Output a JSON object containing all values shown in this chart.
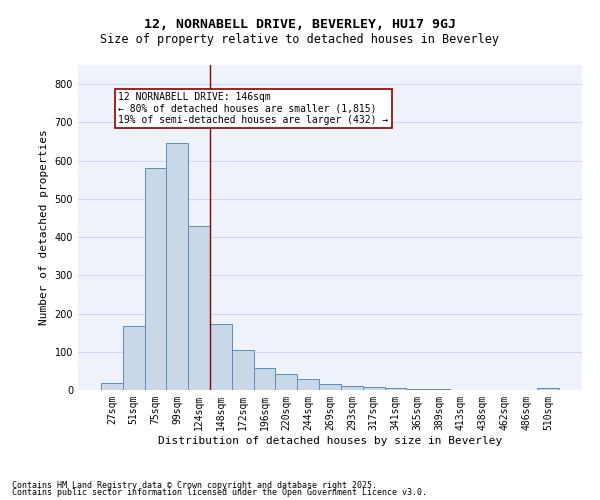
{
  "title1": "12, NORNABELL DRIVE, BEVERLEY, HU17 9GJ",
  "title2": "Size of property relative to detached houses in Beverley",
  "xlabel": "Distribution of detached houses by size in Beverley",
  "ylabel": "Number of detached properties",
  "categories": [
    "27sqm",
    "51sqm",
    "75sqm",
    "99sqm",
    "124sqm",
    "148sqm",
    "172sqm",
    "196sqm",
    "220sqm",
    "244sqm",
    "269sqm",
    "293sqm",
    "317sqm",
    "341sqm",
    "365sqm",
    "389sqm",
    "413sqm",
    "438sqm",
    "462sqm",
    "486sqm",
    "510sqm"
  ],
  "values": [
    18,
    168,
    580,
    645,
    430,
    172,
    105,
    57,
    42,
    30,
    15,
    10,
    9,
    6,
    2,
    2,
    1,
    0,
    0,
    0,
    5
  ],
  "bar_color": "#c8d8e8",
  "bar_edge_color": "#5b8db8",
  "vline_x": 4.5,
  "vline_color": "#8b0000",
  "annotation_text": "12 NORNABELL DRIVE: 146sqm\n← 80% of detached houses are smaller (1,815)\n19% of semi-detached houses are larger (432) →",
  "box_color": "#8b0000",
  "ylim": [
    0,
    850
  ],
  "yticks": [
    0,
    100,
    200,
    300,
    400,
    500,
    600,
    700,
    800
  ],
  "grid_color": "#c8d8f0",
  "bg_color": "#eef2fa",
  "footer1": "Contains HM Land Registry data © Crown copyright and database right 2025.",
  "footer2": "Contains public sector information licensed under the Open Government Licence v3.0.",
  "title1_fontsize": 9.5,
  "title2_fontsize": 8.5,
  "annotation_fontsize": 7.0,
  "axis_label_fontsize": 8,
  "tick_fontsize": 7,
  "footer_fontsize": 6
}
